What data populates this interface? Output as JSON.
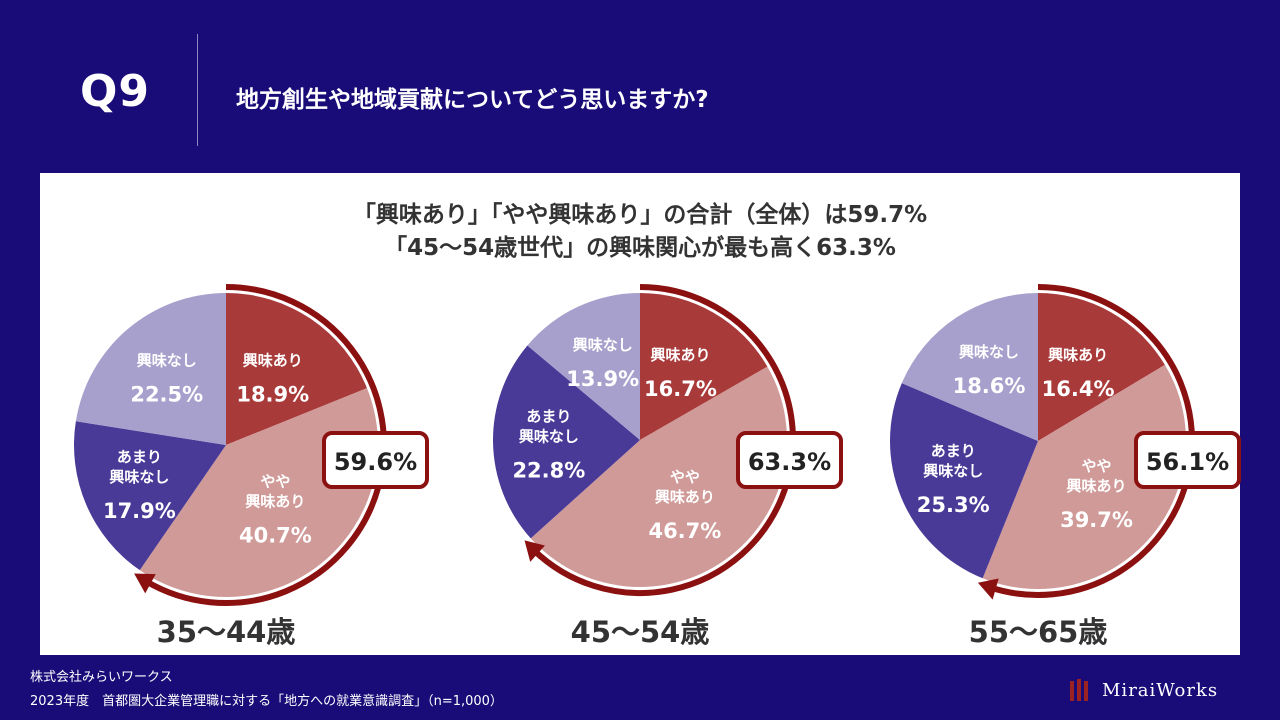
{
  "question": {
    "number": "Q9",
    "text": "地方創生や地域貢献についてどう思いますか?"
  },
  "headline": {
    "line1": "「興味あり」「やや興味あり」の合計（全体）は59.7%",
    "line2": "「45～54歳世代」の興味関心が最も高く63.3%"
  },
  "colors": {
    "background": "#1a0c78",
    "interested": "#a93a3a",
    "somewhat_interested": "#cf9a98",
    "not_very_interested": "#4a3a98",
    "not_interested": "#a7a0cc",
    "arrow": "#8b1010"
  },
  "chart_data": [
    {
      "type": "pie",
      "title": "35～44歳",
      "total_label": "59.6%",
      "slices": [
        {
          "key": "interested",
          "label": "興味あり",
          "value": 18.9,
          "value_label": "18.9%"
        },
        {
          "key": "somewhat_interested",
          "label": "やや\n興味あり",
          "value": 40.7,
          "value_label": "40.7%"
        },
        {
          "key": "not_very_interested",
          "label": "あまり\n興味なし",
          "value": 17.9,
          "value_label": "17.9%"
        },
        {
          "key": "not_interested",
          "label": "興味なし",
          "value": 22.5,
          "value_label": "22.5%"
        }
      ]
    },
    {
      "type": "pie",
      "title": "45～54歳",
      "total_label": "63.3%",
      "slices": [
        {
          "key": "interested",
          "label": "興味あり",
          "value": 16.7,
          "value_label": "16.7%"
        },
        {
          "key": "somewhat_interested",
          "label": "やや\n興味あり",
          "value": 46.7,
          "value_label": "46.7%"
        },
        {
          "key": "not_very_interested",
          "label": "あまり\n興味なし",
          "value": 22.8,
          "value_label": "22.8%"
        },
        {
          "key": "not_interested",
          "label": "興味なし",
          "value": 13.9,
          "value_label": "13.9%"
        }
      ]
    },
    {
      "type": "pie",
      "title": "55～65歳",
      "total_label": "56.1%",
      "slices": [
        {
          "key": "interested",
          "label": "興味あり",
          "value": 16.4,
          "value_label": "16.4%"
        },
        {
          "key": "somewhat_interested",
          "label": "やや\n興味あり",
          "value": 39.7,
          "value_label": "39.7%"
        },
        {
          "key": "not_very_interested",
          "label": "あまり\n興味なし",
          "value": 25.3,
          "value_label": "25.3%"
        },
        {
          "key": "not_interested",
          "label": "興味なし",
          "value": 18.6,
          "value_label": "18.6%"
        }
      ]
    }
  ],
  "footer": {
    "company": "株式会社みらいワークス",
    "source": "2023年度　首都圏大企業管理職に対する「地方への就業意識調査」（n=1,000）"
  },
  "logo": {
    "text": "MiraiWorks"
  }
}
